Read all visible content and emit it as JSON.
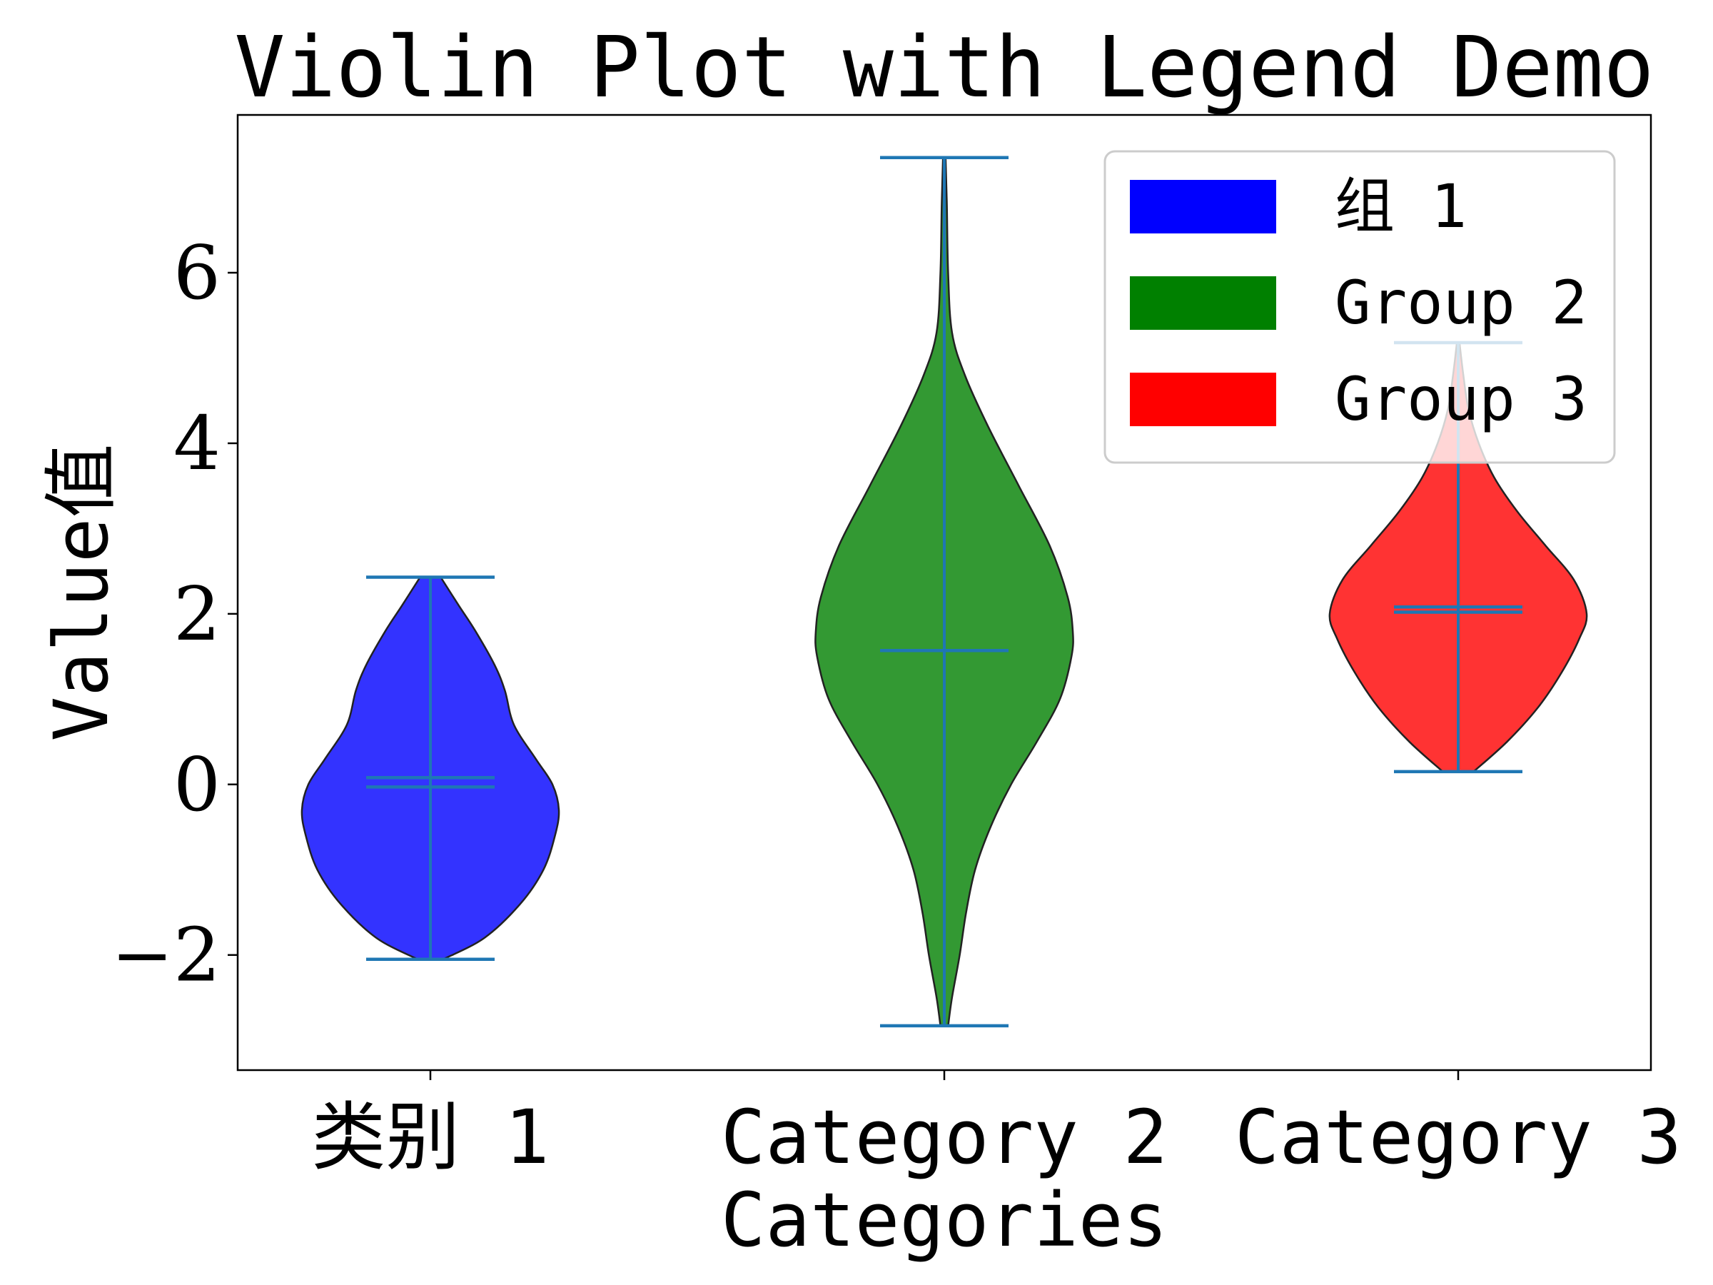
{
  "chart_data": {
    "type": "violin",
    "title": "Violin Plot with Legend Demo",
    "xlabel": "Categories",
    "ylabel": "Value值",
    "categories": [
      "类别 1",
      "Category 2",
      "Category 3"
    ],
    "ylim": [
      -3.35,
      7.85
    ],
    "yticks": [
      -2,
      0,
      2,
      4,
      6
    ],
    "grid": false,
    "legend_position": "top-right",
    "stat_line_color": "#1f77b4",
    "edge_color": "#222222",
    "series": [
      {
        "name": "组 1",
        "color": "#0000ff",
        "min": -2.05,
        "max": 2.43,
        "mean": 0.08,
        "median": -0.03,
        "density": [
          [
            -2.05,
            0.1
          ],
          [
            -1.8,
            0.42
          ],
          [
            -1.4,
            0.7
          ],
          [
            -1.0,
            0.88
          ],
          [
            -0.6,
            0.97
          ],
          [
            -0.3,
            1.0
          ],
          [
            0.0,
            0.95
          ],
          [
            0.3,
            0.82
          ],
          [
            0.7,
            0.65
          ],
          [
            1.1,
            0.58
          ],
          [
            1.4,
            0.5
          ],
          [
            1.8,
            0.35
          ],
          [
            2.1,
            0.22
          ],
          [
            2.43,
            0.08
          ]
        ]
      },
      {
        "name": "Group 2",
        "color": "#008000",
        "min": -2.83,
        "max": 7.35,
        "mean": 1.57,
        "median": 1.57,
        "density": [
          [
            -2.83,
            0.03
          ],
          [
            -2.5,
            0.06
          ],
          [
            -2.0,
            0.12
          ],
          [
            -1.5,
            0.17
          ],
          [
            -1.0,
            0.24
          ],
          [
            -0.5,
            0.36
          ],
          [
            0.0,
            0.52
          ],
          [
            0.5,
            0.72
          ],
          [
            1.0,
            0.9
          ],
          [
            1.5,
            0.99
          ],
          [
            1.8,
            1.0
          ],
          [
            2.2,
            0.96
          ],
          [
            2.8,
            0.82
          ],
          [
            3.5,
            0.58
          ],
          [
            4.2,
            0.34
          ],
          [
            4.8,
            0.16
          ],
          [
            5.3,
            0.06
          ],
          [
            6.0,
            0.03
          ],
          [
            6.8,
            0.02
          ],
          [
            7.35,
            0.01
          ]
        ]
      },
      {
        "name": "Group 3",
        "color": "#ff0000",
        "min": 0.15,
        "max": 5.18,
        "mean": 2.08,
        "median": 2.02,
        "density": [
          [
            0.15,
            0.12
          ],
          [
            0.5,
            0.38
          ],
          [
            0.9,
            0.62
          ],
          [
            1.3,
            0.8
          ],
          [
            1.7,
            0.94
          ],
          [
            2.0,
            1.0
          ],
          [
            2.4,
            0.9
          ],
          [
            2.8,
            0.68
          ],
          [
            3.2,
            0.46
          ],
          [
            3.6,
            0.28
          ],
          [
            4.0,
            0.16
          ],
          [
            4.4,
            0.08
          ],
          [
            4.8,
            0.04
          ],
          [
            5.18,
            0.01
          ]
        ]
      }
    ]
  }
}
